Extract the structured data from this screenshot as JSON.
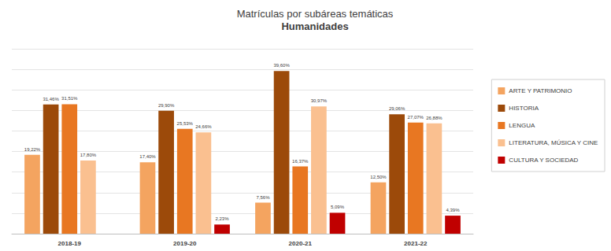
{
  "chart_data": {
    "type": "bar",
    "title": "Matrículas por subáreas temáticas",
    "subtitle": "Humanidades",
    "categories": [
      "2018-19",
      "2019-20",
      "2020-21",
      "2021-22"
    ],
    "series": [
      {
        "name": "ARTE Y PATRIMONIO",
        "color": "#f4a460",
        "values": [
          19.22,
          17.4,
          7.56,
          12.5
        ],
        "value_labels": [
          "19,22%",
          "17,40%",
          "7,56%",
          "12,50%"
        ]
      },
      {
        "name": "HISTORIA",
        "color": "#9c4a0a",
        "values": [
          31.46,
          29.9,
          39.6,
          29.06
        ],
        "value_labels": [
          "31,46%",
          "29,90%",
          "39,60%",
          "29,06%"
        ]
      },
      {
        "name": "LENGUA",
        "color": "#e87722",
        "values": [
          31.51,
          25.53,
          16.37,
          27.07
        ],
        "value_labels": [
          "31,51%",
          "25,53%",
          "16,37%",
          "27,07%"
        ]
      },
      {
        "name": "LITERATURA, MÚSICA Y CINE",
        "color": "#fac090",
        "values": [
          17.8,
          24.66,
          30.97,
          26.88
        ],
        "value_labels": [
          "17,80%",
          "24,66%",
          "30,97%",
          "26,88%"
        ]
      },
      {
        "name": "CULTURA Y SOCIEDAD",
        "color": "#c00000",
        "values": [
          null,
          2.23,
          5.09,
          4.39
        ],
        "value_labels": [
          null,
          "2,23%",
          "5,09%",
          "4,39%"
        ]
      }
    ],
    "ylim": [
      0,
      45
    ],
    "yticks": [
      0,
      5,
      10,
      15,
      20,
      25,
      30,
      35,
      40,
      45
    ],
    "grid": true,
    "legend": "right",
    "data_labels": true,
    "tick_labels": "x"
  }
}
